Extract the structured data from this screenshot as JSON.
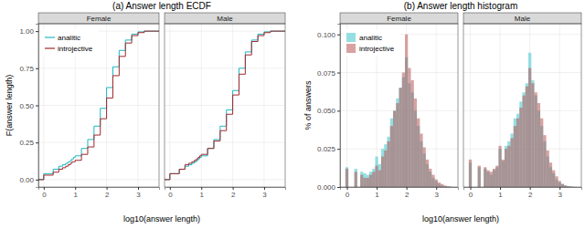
{
  "chart_data": [
    {
      "type": "line",
      "title": "(a) Answer length ECDF",
      "xlabel": "log10(answer length)",
      "ylabel": "F(answer length)",
      "xlim": [
        -0.17,
        3.67
      ],
      "ylim": [
        -0.05,
        1.05
      ],
      "xticks": [
        0,
        1,
        2,
        3
      ],
      "yticks": [
        {
          "value": 0,
          "label": "0.00"
        },
        {
          "value": 0.25,
          "label": "0.25"
        },
        {
          "value": 0.5,
          "label": "0.50"
        },
        {
          "value": 0.75,
          "label": "0.75"
        },
        {
          "value": 1,
          "label": "1.00"
        }
      ],
      "grid": true,
      "legend": "top-left",
      "line_style": "step",
      "facets": [
        {
          "name": "Female",
          "x": [
            -0.17,
            0,
            0.3,
            0.48,
            0.6,
            0.7,
            0.78,
            0.85,
            0.9,
            0.95,
            1.0,
            1.2,
            1.4,
            1.6,
            1.8,
            2.0,
            2.2,
            2.4,
            2.6,
            2.8,
            3.0,
            3.2,
            3.67
          ],
          "series": [
            {
              "name": "analitic",
              "color": "#1db8c2",
              "values": [
                0,
                0.04,
                0.07,
                0.09,
                0.1,
                0.11,
                0.12,
                0.13,
                0.14,
                0.15,
                0.16,
                0.21,
                0.27,
                0.36,
                0.48,
                0.62,
                0.76,
                0.87,
                0.94,
                0.98,
                0.995,
                1,
                1
              ]
            },
            {
              "name": "introjective",
              "color": "#a3272b",
              "values": [
                0,
                0.03,
                0.05,
                0.07,
                0.08,
                0.09,
                0.1,
                0.11,
                0.12,
                0.12,
                0.13,
                0.17,
                0.22,
                0.3,
                0.41,
                0.55,
                0.7,
                0.83,
                0.92,
                0.97,
                0.99,
                1,
                1
              ]
            }
          ]
        },
        {
          "name": "Male",
          "x": [
            -0.17,
            0,
            0.3,
            0.48,
            0.6,
            0.7,
            0.78,
            0.85,
            0.9,
            0.95,
            1.0,
            1.2,
            1.4,
            1.6,
            1.8,
            2.0,
            2.2,
            2.4,
            2.6,
            2.8,
            3.0,
            3.2,
            3.67
          ],
          "series": [
            {
              "name": "analitic",
              "color": "#1db8c2",
              "values": [
                0,
                0.04,
                0.07,
                0.09,
                0.1,
                0.11,
                0.12,
                0.13,
                0.14,
                0.15,
                0.16,
                0.21,
                0.27,
                0.36,
                0.47,
                0.6,
                0.75,
                0.86,
                0.94,
                0.98,
                0.995,
                1,
                1
              ]
            },
            {
              "name": "introjective",
              "color": "#a3272b",
              "values": [
                0,
                0.04,
                0.07,
                0.1,
                0.11,
                0.12,
                0.13,
                0.14,
                0.15,
                0.16,
                0.17,
                0.21,
                0.26,
                0.33,
                0.44,
                0.57,
                0.71,
                0.84,
                0.93,
                0.97,
                0.99,
                1,
                1
              ]
            }
          ]
        }
      ]
    },
    {
      "type": "histogram",
      "title": "(b) Answer length histogram",
      "xlabel": "log10(answer length)",
      "ylabel": "% of answers",
      "xlim": [
        -0.23,
        3.73
      ],
      "ylim": [
        0,
        0.107
      ],
      "xticks": [
        0,
        1,
        2,
        3
      ],
      "yticks": [
        {
          "value": 0,
          "label": "0.000"
        },
        {
          "value": 0.025,
          "label": "0.025"
        },
        {
          "value": 0.05,
          "label": "0.050"
        },
        {
          "value": 0.075,
          "label": "0.075"
        },
        {
          "value": 0.1,
          "label": "0.100"
        }
      ],
      "grid": true,
      "legend": "top-left",
      "facets": [
        {
          "name": "Female",
          "bins": [
            -0.05,
            0.05,
            0.15,
            0.25,
            0.35,
            0.45,
            0.55,
            0.65,
            0.75,
            0.85,
            0.95,
            1.05,
            1.15,
            1.25,
            1.35,
            1.45,
            1.55,
            1.65,
            1.75,
            1.85,
            1.95,
            2.05,
            2.15,
            2.25,
            2.35,
            2.45,
            2.55,
            2.65,
            2.75,
            2.85,
            2.95,
            3.05,
            3.15,
            3.25,
            3.35,
            3.45,
            3.55
          ],
          "series": [
            {
              "name": "analitic",
              "color": "#3cc4cc",
              "values": [
                0.013,
                0,
                0,
                0.012,
                0,
                0.01,
                0.009,
                0.008,
                0.01,
                0.012,
                0.02,
                0.015,
                0.025,
                0.028,
                0.033,
                0.045,
                0.05,
                0.058,
                0.065,
                0.072,
                0.085,
                0.068,
                0.062,
                0.05,
                0.04,
                0.03,
                0.022,
                0.015,
                0.01,
                0.006,
                0.004,
                0.002,
                0.001,
                0.0005,
                0.0003,
                0
              ]
            },
            {
              "name": "introjective",
              "color": "#b85555",
              "values": [
                0.012,
                0,
                0,
                0.01,
                0,
                0.008,
                0.006,
                0.006,
                0.008,
                0.01,
                0.014,
                0.011,
                0.02,
                0.024,
                0.03,
                0.04,
                0.05,
                0.055,
                0.065,
                0.075,
                0.1,
                0.078,
                0.07,
                0.058,
                0.045,
                0.035,
                0.026,
                0.018,
                0.012,
                0.008,
                0.005,
                0.003,
                0.002,
                0.001,
                0.0005,
                0.0002
              ]
            }
          ]
        },
        {
          "name": "Male",
          "bins": [
            -0.05,
            0.05,
            0.15,
            0.25,
            0.35,
            0.45,
            0.55,
            0.65,
            0.75,
            0.85,
            0.95,
            1.05,
            1.15,
            1.25,
            1.35,
            1.45,
            1.55,
            1.65,
            1.75,
            1.85,
            1.95,
            2.05,
            2.15,
            2.25,
            2.35,
            2.45,
            2.55,
            2.65,
            2.75,
            2.85,
            2.95,
            3.05,
            3.15,
            3.25,
            3.35,
            3.45,
            3.55
          ],
          "series": [
            {
              "name": "analitic",
              "color": "#3cc4cc",
              "values": [
                0.016,
                0,
                0,
                0.013,
                0,
                0.012,
                0.01,
                0.008,
                0.011,
                0.013,
                0.025,
                0.017,
                0.027,
                0.03,
                0.035,
                0.045,
                0.048,
                0.056,
                0.062,
                0.068,
                0.088,
                0.07,
                0.06,
                0.05,
                0.04,
                0.03,
                0.02,
                0.013,
                0.009,
                0.005,
                0.003,
                0.002,
                0.001,
                0.0005,
                0.0002,
                0
              ]
            },
            {
              "name": "introjective",
              "color": "#b85555",
              "values": [
                0.018,
                0,
                0,
                0.014,
                0,
                0.013,
                0.011,
                0.01,
                0.012,
                0.014,
                0.027,
                0.018,
                0.025,
                0.027,
                0.032,
                0.04,
                0.045,
                0.052,
                0.06,
                0.066,
                0.078,
                0.068,
                0.062,
                0.055,
                0.045,
                0.034,
                0.024,
                0.016,
                0.011,
                0.007,
                0.004,
                0.002,
                0.001,
                0.0005,
                0.0003,
                0.0001
              ]
            }
          ]
        }
      ]
    }
  ]
}
